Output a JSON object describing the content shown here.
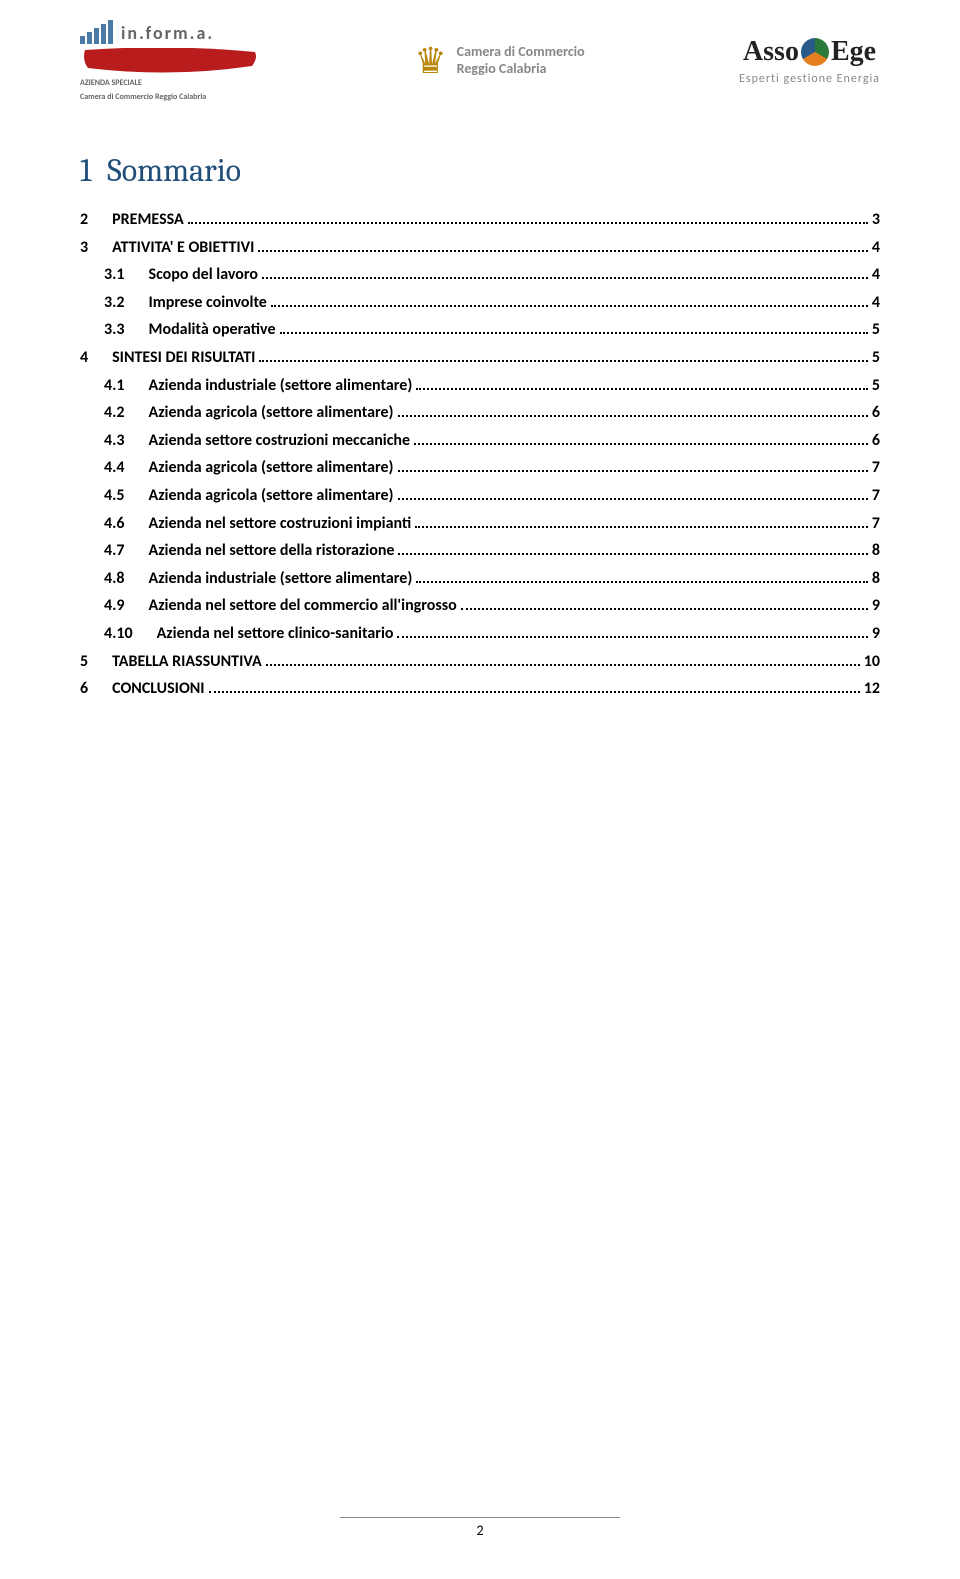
{
  "header": {
    "informa": {
      "name": "in.form.a.",
      "sub1": "AZIENDA SPECIALE",
      "sub2": "Camera di Commercio Reggio Calabria",
      "ribbon_color": "#b91c1c",
      "bar_color": "#4a7aa8"
    },
    "cciaa": {
      "line1": "Camera di Commercio",
      "line2": "Reggio Calabria"
    },
    "asso": {
      "left": "Asso",
      "right": "Ege",
      "sub": "Esperti gestione Energia"
    }
  },
  "title": {
    "num": "1",
    "label": "Sommario"
  },
  "toc": [
    {
      "level": 1,
      "num": "2",
      "label": "PREMESSA",
      "page": "3"
    },
    {
      "level": 1,
      "num": "3",
      "label": "ATTIVITA' E OBIETTIVI",
      "page": "4"
    },
    {
      "level": 2,
      "num": "3.1",
      "label": "Scopo del lavoro",
      "page": "4"
    },
    {
      "level": 2,
      "num": "3.2",
      "label": "Imprese coinvolte",
      "page": "4"
    },
    {
      "level": 2,
      "num": "3.3",
      "label": "Modalità operative",
      "page": "5"
    },
    {
      "level": 1,
      "num": "4",
      "label": "SINTESI DEI RISULTATI",
      "page": "5"
    },
    {
      "level": 2,
      "num": "4.1",
      "label": "Azienda industriale (settore alimentare)",
      "page": "5"
    },
    {
      "level": 2,
      "num": "4.2",
      "label": "Azienda agricola (settore alimentare)",
      "page": "6"
    },
    {
      "level": 2,
      "num": "4.3",
      "label": "Azienda settore costruzioni meccaniche",
      "page": "6"
    },
    {
      "level": 2,
      "num": "4.4",
      "label": "Azienda agricola (settore alimentare)",
      "page": "7"
    },
    {
      "level": 2,
      "num": "4.5",
      "label": "Azienda agricola (settore alimentare)",
      "page": "7"
    },
    {
      "level": 2,
      "num": "4.6",
      "label": "Azienda nel settore costruzioni impianti",
      "page": "7"
    },
    {
      "level": 2,
      "num": "4.7",
      "label": "Azienda nel settore della ristorazione",
      "page": "8"
    },
    {
      "level": 2,
      "num": "4.8",
      "label": "Azienda industriale (settore alimentare)",
      "page": "8"
    },
    {
      "level": 2,
      "num": "4.9",
      "label": "Azienda nel settore del commercio all'ingrosso",
      "page": "9"
    },
    {
      "level": 2,
      "num": "4.10",
      "label": "Azienda nel settore clinico-sanitario",
      "page": "9"
    },
    {
      "level": 1,
      "num": "5",
      "label": "TABELLA RIASSUNTIVA",
      "page": "10"
    },
    {
      "level": 1,
      "num": "6",
      "label": "CONCLUSIONI",
      "page": "12"
    }
  ],
  "footer": {
    "page_num": "2"
  }
}
